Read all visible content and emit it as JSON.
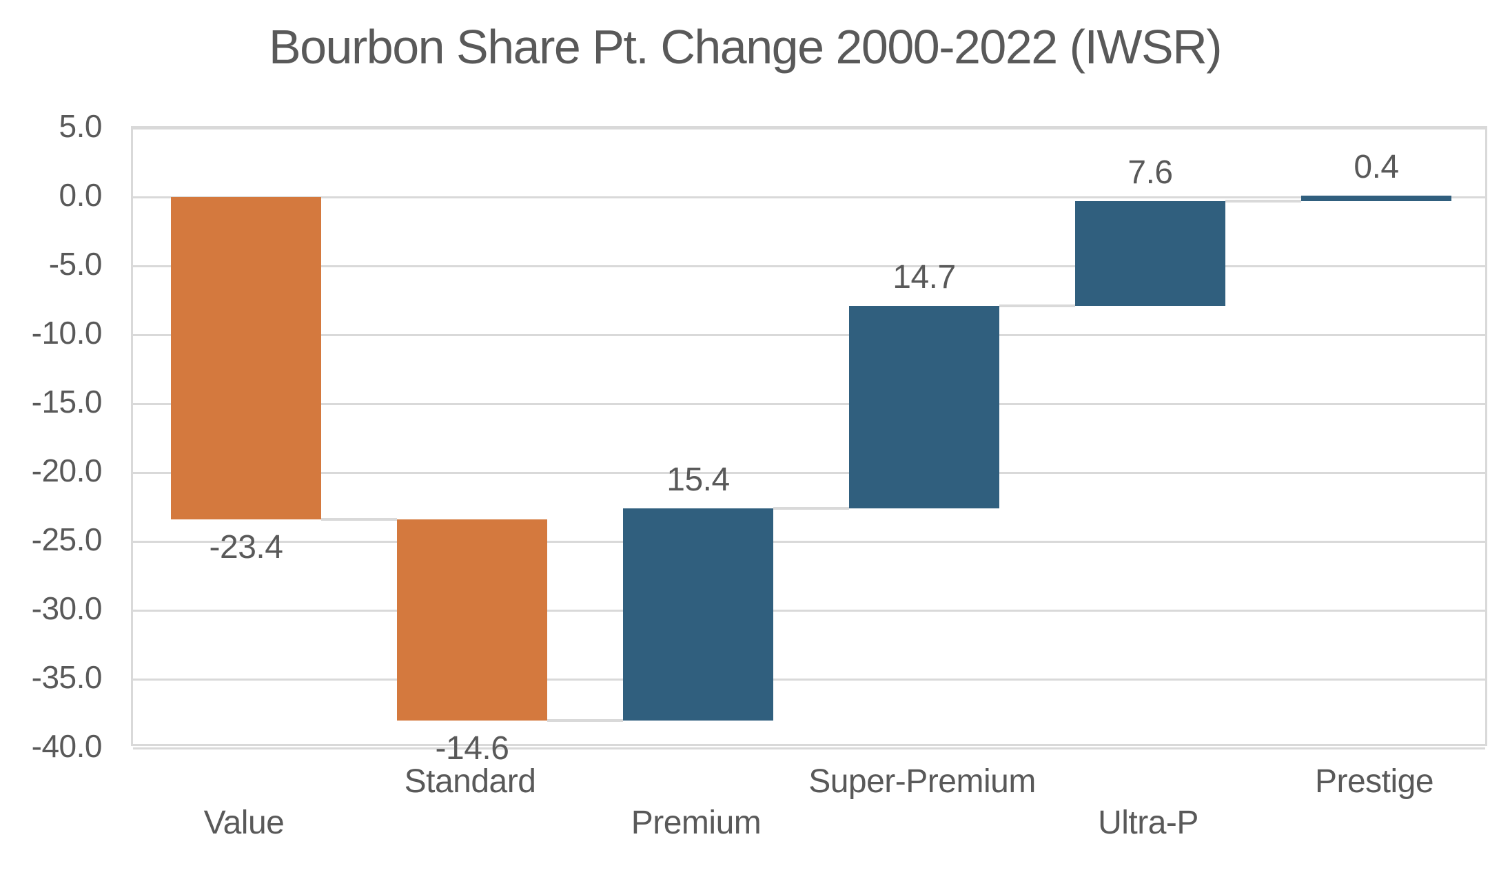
{
  "chart_data": {
    "type": "bar",
    "subtype": "waterfall",
    "title": "Bourbon Share Pt. Change 2000-2022 (IWSR)",
    "categories": [
      "Value",
      "Standard",
      "Premium",
      "Super-Premium",
      "Ultra-P",
      "Prestige"
    ],
    "values": [
      -23.4,
      -14.6,
      15.4,
      14.7,
      7.6,
      0.4
    ],
    "bars": [
      {
        "category": "Value",
        "delta": -23.4,
        "start": 0,
        "end": -23.4,
        "label": "-23.4",
        "direction": "decrease",
        "label_position": "below",
        "axis_row": "lower"
      },
      {
        "category": "Standard",
        "delta": -14.6,
        "start": -23.4,
        "end": -38.0,
        "label": "-14.6",
        "direction": "decrease",
        "label_position": "below",
        "axis_row": "upper"
      },
      {
        "category": "Premium",
        "delta": 15.4,
        "start": -38.0,
        "end": -22.6,
        "label": "15.4",
        "direction": "increase",
        "label_position": "above",
        "axis_row": "lower"
      },
      {
        "category": "Super-Premium",
        "delta": 14.7,
        "start": -22.6,
        "end": -7.9,
        "label": "14.7",
        "direction": "increase",
        "label_position": "above",
        "axis_row": "upper"
      },
      {
        "category": "Ultra-P",
        "delta": 7.6,
        "start": -7.9,
        "end": -0.3,
        "label": "7.6",
        "direction": "increase",
        "label_position": "above",
        "axis_row": "lower"
      },
      {
        "category": "Prestige",
        "delta": 0.4,
        "start": -0.3,
        "end": 0.1,
        "label": "0.4",
        "direction": "increase",
        "label_position": "above",
        "axis_row": "upper"
      }
    ],
    "y_axis": {
      "min": -40,
      "max": 5,
      "step": 5,
      "tick_labels": [
        "5.0",
        "0.0",
        "-5.0",
        "-10.0",
        "-15.0",
        "-20.0",
        "-25.0",
        "-30.0",
        "-35.0",
        "-40.0"
      ],
      "tick_values": [
        5,
        0,
        -5,
        -10,
        -15,
        -20,
        -25,
        -30,
        -35,
        -40
      ]
    },
    "grid": true,
    "legend": false,
    "connector_lines": true,
    "gap_width_percent": 50,
    "colors": {
      "decrease": "#D4793E",
      "increase": "#305F7E",
      "grid": "#D9D9D9",
      "connector": "#D9D9D9",
      "text": "#595959",
      "background": "#FFFFFF"
    }
  }
}
